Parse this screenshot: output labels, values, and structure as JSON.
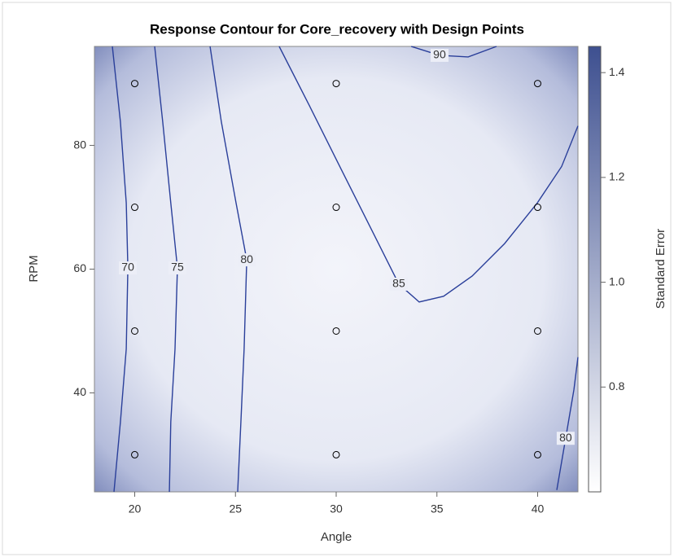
{
  "chart_data": {
    "type": "contour",
    "title": "Response Contour for Core_recovery with Design Points",
    "x_label": "Angle",
    "y_label": "RPM",
    "xlim": [
      18,
      42
    ],
    "ylim": [
      24,
      96
    ],
    "xticks": [
      20,
      25,
      30,
      35,
      40
    ],
    "yticks": [
      40,
      60,
      80
    ],
    "line_color": "#2a3f9a",
    "contours": [
      {
        "level": 70,
        "x": [
          18.89,
          19.29,
          19.58,
          19.66,
          19.58,
          19.29,
          18.97
        ],
        "y": [
          96,
          83.8,
          70.7,
          60.2,
          47.1,
          35.3,
          24
        ]
      },
      {
        "level": 75,
        "x": [
          20.99,
          21.39,
          21.79,
          22.12,
          22.0,
          21.79,
          21.72
        ],
        "y": [
          96,
          83.8,
          70.7,
          60.2,
          47.1,
          35.3,
          24
        ]
      },
      {
        "level": 80,
        "x": [
          23.74,
          24.3,
          25.03,
          25.56,
          25.43,
          25.27,
          25.11
        ],
        "y": [
          96,
          83.8,
          70.7,
          61.5,
          47.1,
          35.3,
          24
        ]
      },
      {
        "level": 85,
        "x": [
          27.17,
          28.67,
          30.28,
          31.9,
          33.11,
          34.12,
          35.33,
          36.75,
          38.36,
          39.98,
          41.19,
          42
        ],
        "y": [
          96,
          86.43,
          75.93,
          65.44,
          57.57,
          54.69,
          55.61,
          58.89,
          64.13,
          70.69,
          76.59,
          83.15
        ]
      },
      {
        "level": 90,
        "x": [
          33.72,
          35.13,
          36.55,
          37.96
        ],
        "y": [
          96,
          94.56,
          94.3,
          96
        ]
      },
      {
        "level": 80,
        "x": [
          40.95,
          41.39,
          41.8,
          42
        ],
        "y": [
          24.3,
          32.66,
          40.52,
          45.77
        ]
      }
    ],
    "design_points": {
      "x": [
        20,
        20,
        20,
        20,
        30,
        30,
        30,
        30,
        40,
        40,
        40,
        40
      ],
      "y": [
        30,
        50,
        70,
        90,
        30,
        50,
        70,
        90,
        30,
        50,
        70,
        90
      ]
    },
    "colorbar": {
      "label": "Standard Error",
      "lim": [
        0.6,
        1.45
      ],
      "ticks": [
        0.8,
        {
          "value": 1,
          "label": "1.0"
        },
        1.2,
        1.4
      ],
      "colors": [
        "#ffffff",
        "#3e5090"
      ]
    }
  }
}
